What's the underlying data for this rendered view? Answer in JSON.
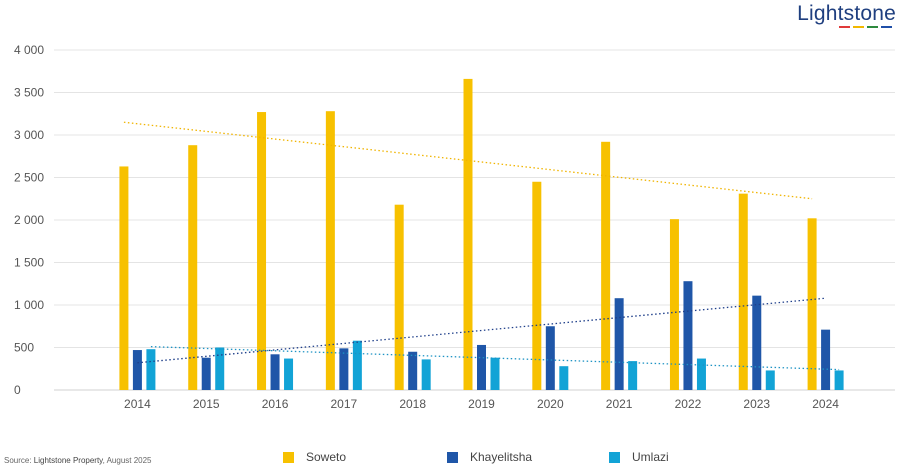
{
  "logo": {
    "text": "Lightstone",
    "bar_colors": [
      "#e03a3a",
      "#f2b800",
      "#2e8a3e",
      "#1f4fa8"
    ]
  },
  "source": {
    "prefix": "Source: ",
    "name": "Lightstone Property",
    "suffix": ", August 2025"
  },
  "chart_data": {
    "type": "bar",
    "title": "",
    "xlabel": "",
    "ylabel": "",
    "ylim": [
      0,
      4000
    ],
    "yticks": [
      0,
      500,
      1000,
      1500,
      2000,
      2500,
      3000,
      3500,
      4000
    ],
    "ytick_labels": [
      "0",
      "500",
      "1 000",
      "1 500",
      "2 000",
      "2 500",
      "3 000",
      "3 500",
      "4 000"
    ],
    "grid": true,
    "legend_position": "bottom",
    "categories": [
      "2014",
      "2015",
      "2016",
      "2017",
      "2018",
      "2019",
      "2020",
      "2021",
      "2022",
      "2023",
      "2024"
    ],
    "series": [
      {
        "name": "Soweto",
        "color": "#f7c100",
        "trend_color": "#f0b400",
        "values": [
          2630,
          2880,
          3270,
          3280,
          2180,
          3660,
          2450,
          2920,
          2010,
          2310,
          2020
        ],
        "trendline": [
          3150,
          2250
        ]
      },
      {
        "name": "Khayelitsha",
        "color": "#1f56a8",
        "trend_color": "#1f3f8a",
        "values": [
          470,
          380,
          420,
          490,
          450,
          530,
          750,
          1080,
          1280,
          1110,
          710
        ],
        "trendline": [
          320,
          1080
        ]
      },
      {
        "name": "Umlazi",
        "color": "#12a3d6",
        "trend_color": "#1e93c4",
        "values": [
          480,
          500,
          370,
          580,
          360,
          380,
          280,
          340,
          370,
          230,
          230
        ],
        "trendline": [
          510,
          240
        ]
      }
    ]
  }
}
